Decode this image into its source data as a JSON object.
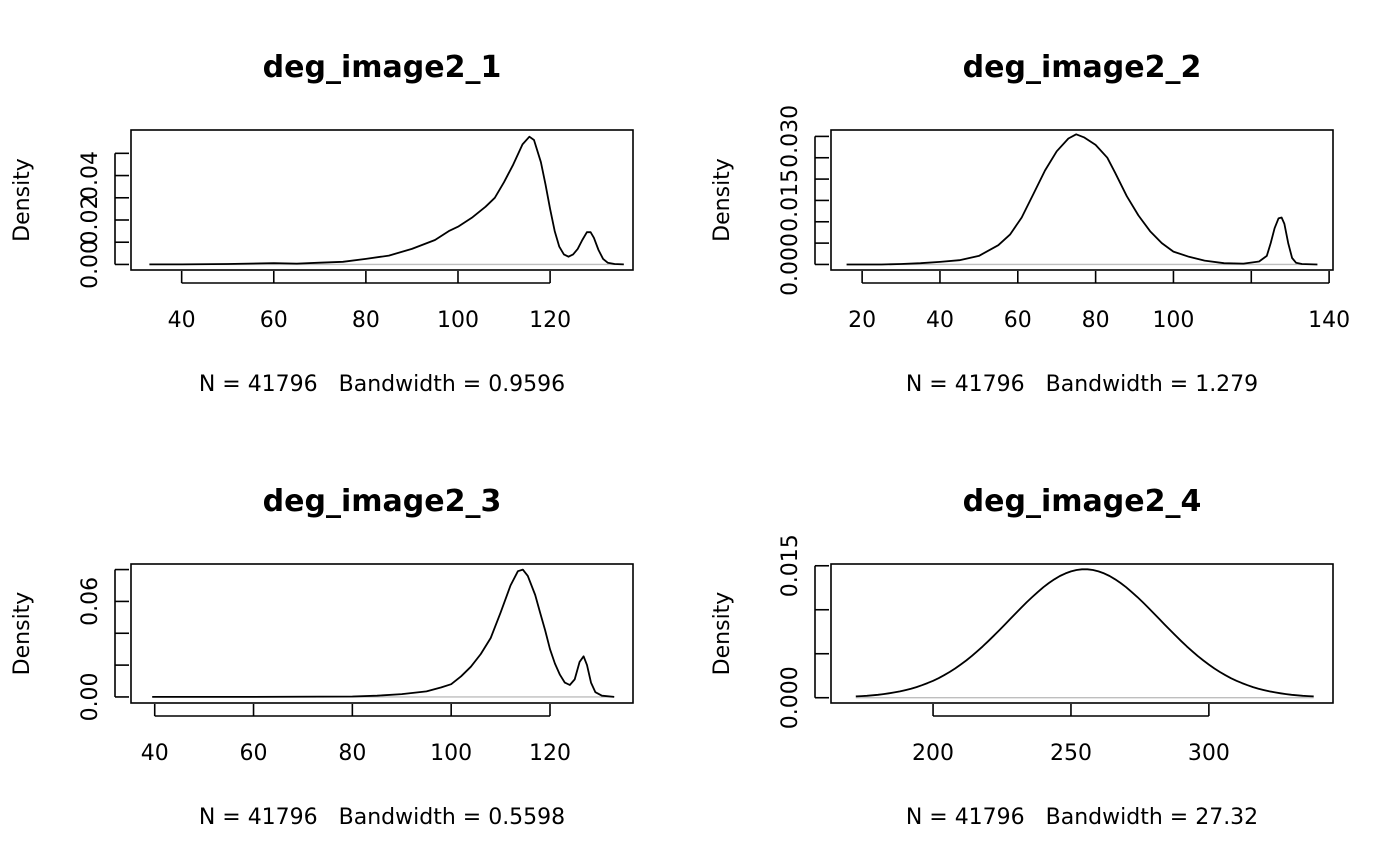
{
  "chart_data": [
    {
      "type": "line",
      "title": "deg_image2_1",
      "xlabel": "N = 41796   Bandwidth = 0.9596",
      "ylabel": "Density",
      "xlim": [
        29,
        138
      ],
      "ylim": [
        -0.0025,
        0.0605
      ],
      "x_ticks": [
        40,
        60,
        80,
        100,
        120
      ],
      "y_ticks": [
        0,
        0.01,
        0.02,
        0.03,
        0.04,
        0.05
      ],
      "y_tick_labels": [
        {
          "value": 0,
          "label": "0.00"
        },
        {
          "value": 0.02,
          "label": "0.02"
        },
        {
          "value": 0.04,
          "label": "0.04"
        }
      ],
      "points": [
        [
          33,
          0
        ],
        [
          40,
          0
        ],
        [
          50,
          0.0002
        ],
        [
          60,
          0.0006
        ],
        [
          65,
          0.0004
        ],
        [
          70,
          0.0008
        ],
        [
          75,
          0.0012
        ],
        [
          80,
          0.0025
        ],
        [
          85,
          0.004
        ],
        [
          90,
          0.007
        ],
        [
          95,
          0.011
        ],
        [
          98,
          0.015
        ],
        [
          100,
          0.017
        ],
        [
          103,
          0.021
        ],
        [
          106,
          0.026
        ],
        [
          108,
          0.03
        ],
        [
          110,
          0.037
        ],
        [
          112,
          0.045
        ],
        [
          114,
          0.054
        ],
        [
          115.5,
          0.0575
        ],
        [
          116.5,
          0.056
        ],
        [
          118,
          0.046
        ],
        [
          119,
          0.036
        ],
        [
          120,
          0.025
        ],
        [
          121,
          0.015
        ],
        [
          122,
          0.008
        ],
        [
          123,
          0.0045
        ],
        [
          124,
          0.0035
        ],
        [
          125,
          0.0045
        ],
        [
          126,
          0.007
        ],
        [
          127,
          0.011
        ],
        [
          128,
          0.0145
        ],
        [
          128.8,
          0.0145
        ],
        [
          129.5,
          0.012
        ],
        [
          130.5,
          0.0065
        ],
        [
          131.5,
          0.0025
        ],
        [
          132.5,
          0.0008
        ],
        [
          134,
          0.0002
        ],
        [
          136,
          0
        ]
      ]
    },
    {
      "type": "line",
      "title": "deg_image2_2",
      "xlabel": "N = 41796   Bandwidth = 1.279",
      "ylabel": "Density",
      "xlim": [
        12,
        141
      ],
      "ylim": [
        -0.0013,
        0.0315
      ],
      "x_ticks": [
        20,
        40,
        60,
        80,
        100,
        120,
        140
      ],
      "x_tick_labels": [
        {
          "value": 20,
          "label": "20"
        },
        {
          "value": 40,
          "label": "40"
        },
        {
          "value": 60,
          "label": "60"
        },
        {
          "value": 80,
          "label": "80"
        },
        {
          "value": 100,
          "label": "100"
        },
        {
          "value": 140,
          "label": "140"
        }
      ],
      "y_ticks": [
        0,
        0.005,
        0.01,
        0.015,
        0.02,
        0.025,
        0.03
      ],
      "y_tick_labels": [
        {
          "value": 0,
          "label": "0.000"
        },
        {
          "value": 0.015,
          "label": "0.015"
        },
        {
          "value": 0.03,
          "label": "0.030"
        }
      ],
      "points": [
        [
          16,
          0
        ],
        [
          25,
          0
        ],
        [
          30,
          0.0001
        ],
        [
          35,
          0.0003
        ],
        [
          40,
          0.0006
        ],
        [
          45,
          0.001
        ],
        [
          50,
          0.002
        ],
        [
          55,
          0.0045
        ],
        [
          58,
          0.007
        ],
        [
          61,
          0.011
        ],
        [
          64,
          0.0165
        ],
        [
          67,
          0.022
        ],
        [
          70,
          0.0265
        ],
        [
          73,
          0.0295
        ],
        [
          75,
          0.0305
        ],
        [
          77,
          0.0298
        ],
        [
          80,
          0.028
        ],
        [
          83,
          0.025
        ],
        [
          85,
          0.0215
        ],
        [
          88,
          0.016
        ],
        [
          91,
          0.0115
        ],
        [
          94,
          0.0078
        ],
        [
          97,
          0.005
        ],
        [
          100,
          0.003
        ],
        [
          104,
          0.0018
        ],
        [
          108,
          0.0009
        ],
        [
          113,
          0.0003
        ],
        [
          118,
          0.0002
        ],
        [
          122,
          0.0007
        ],
        [
          124,
          0.002
        ],
        [
          125,
          0.005
        ],
        [
          126,
          0.0085
        ],
        [
          127,
          0.0108
        ],
        [
          127.8,
          0.011
        ],
        [
          128.5,
          0.0095
        ],
        [
          129.5,
          0.005
        ],
        [
          130.5,
          0.0015
        ],
        [
          131.5,
          0.0004
        ],
        [
          133,
          0.0001
        ],
        [
          137,
          0
        ]
      ]
    },
    {
      "type": "line",
      "title": "deg_image2_3",
      "xlabel": "N = 41796   Bandwidth = 0.5598",
      "ylabel": "Density",
      "xlim": [
        35.2,
        136.8
      ],
      "ylim": [
        -0.0038,
        0.0835
      ],
      "x_ticks": [
        40,
        60,
        80,
        100,
        120
      ],
      "y_ticks": [
        0,
        0.02,
        0.04,
        0.06,
        0.08
      ],
      "y_tick_labels": [
        {
          "value": 0,
          "label": "0.00"
        },
        {
          "value": 0.06,
          "label": "0.06"
        }
      ],
      "points": [
        [
          39.5,
          0
        ],
        [
          60,
          0
        ],
        [
          80,
          0.0003
        ],
        [
          85,
          0.0008
        ],
        [
          90,
          0.0018
        ],
        [
          95,
          0.0035
        ],
        [
          98,
          0.006
        ],
        [
          100,
          0.008
        ],
        [
          102,
          0.013
        ],
        [
          104,
          0.019
        ],
        [
          106,
          0.027
        ],
        [
          108,
          0.037
        ],
        [
          110,
          0.053
        ],
        [
          112,
          0.07
        ],
        [
          113.5,
          0.079
        ],
        [
          114.5,
          0.08
        ],
        [
          115.5,
          0.076
        ],
        [
          117,
          0.064
        ],
        [
          118,
          0.053
        ],
        [
          119,
          0.042
        ],
        [
          120,
          0.03
        ],
        [
          121,
          0.021
        ],
        [
          122,
          0.014
        ],
        [
          123,
          0.009
        ],
        [
          124,
          0.0075
        ],
        [
          125,
          0.011
        ],
        [
          126,
          0.022
        ],
        [
          126.8,
          0.0255
        ],
        [
          127.5,
          0.02
        ],
        [
          128.3,
          0.009
        ],
        [
          129.2,
          0.003
        ],
        [
          130.5,
          0.0008
        ],
        [
          133,
          0
        ]
      ]
    },
    {
      "type": "line",
      "title": "deg_image2_4",
      "xlabel": "N = 41796   Bandwidth = 27.32",
      "ylabel": "Density",
      "xlim": [
        163,
        345
      ],
      "ylim": [
        -0.0006,
        0.0152
      ],
      "x_ticks": [
        200,
        250,
        300
      ],
      "y_ticks": [
        0,
        0.005,
        0.01,
        0.015
      ],
      "y_tick_labels": [
        {
          "value": 0,
          "label": "0.000"
        },
        {
          "value": 0.015,
          "label": "0.015"
        }
      ],
      "normal_curve": {
        "mean": 255,
        "sd": 27.32,
        "x_from": 172,
        "x_to": 338
      }
    }
  ]
}
